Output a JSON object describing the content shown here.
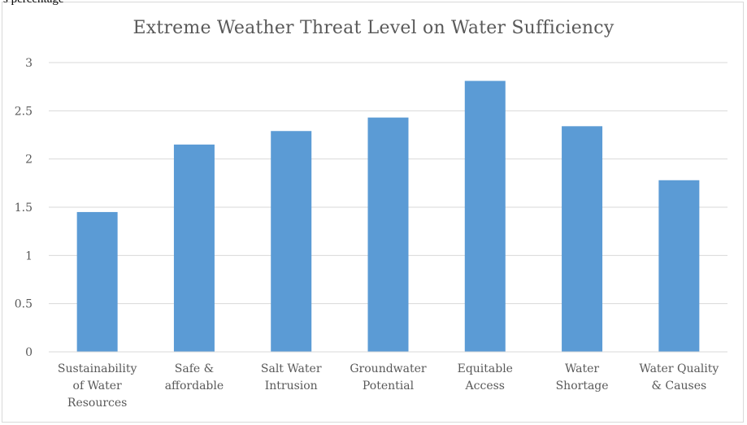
{
  "header_fragment": "s percentage",
  "chart_data": {
    "type": "bar",
    "title": "Extreme Weather Threat Level on Water Sufficiency",
    "xlabel": "",
    "ylabel": "",
    "categories": [
      [
        "Sustainability",
        "of Water",
        "Resources"
      ],
      [
        "Safe &",
        "affordable"
      ],
      [
        "Salt Water",
        "Intrusion"
      ],
      [
        "Groundwater",
        "Potential"
      ],
      [
        "Equitable",
        "Access"
      ],
      [
        "Water",
        "Shortage"
      ],
      [
        "Water Quality",
        "& Causes"
      ]
    ],
    "values": [
      1.45,
      2.15,
      2.29,
      2.43,
      2.81,
      2.34,
      1.78
    ],
    "ylim": [
      0,
      3
    ],
    "yticks": [
      "0",
      "0.5",
      "1",
      "1.5",
      "2",
      "2.5",
      "3"
    ],
    "grid": true,
    "legend": "none",
    "bar_color": "#5b9bd5",
    "grid_color": "#d9d9d9"
  }
}
